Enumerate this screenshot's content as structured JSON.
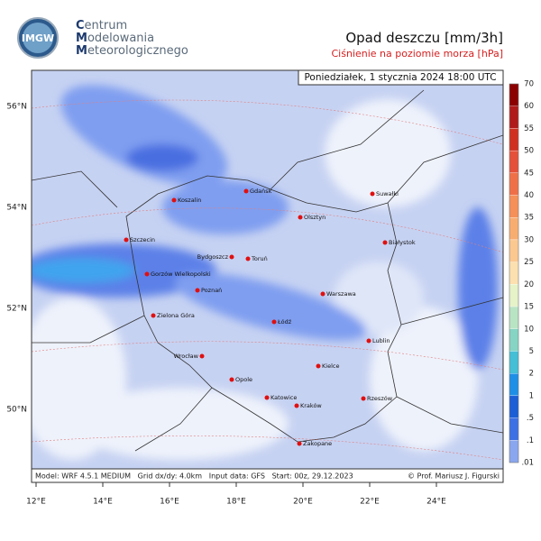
{
  "header": {
    "logo": "IMGW",
    "org": [
      "Centrum",
      "Modelowania",
      "Meteorologicznego"
    ],
    "title": "Opad deszczu [mm/3h]",
    "subtitle": "Ciśnienie na poziomie morza [hPa]"
  },
  "map": {
    "datetime": "Poniedziałek, 1 stycznia 2024 18:00 UTC",
    "lat_labels": [
      "56°N",
      "54°N",
      "52°N",
      "50°N"
    ],
    "lon_labels": [
      "12°E",
      "14°E",
      "16°E",
      "18°E",
      "20°E",
      "22°E",
      "24°E"
    ],
    "cities": [
      "Koszalin",
      "Gdańsk",
      "Suwałki",
      "Olsztyn",
      "Szczecin",
      "Białystok",
      "Bydgoszcz",
      "Toruń",
      "Gorzów Wielkopolski",
      "Poznań",
      "Warszawa",
      "Zielona Góra",
      "Łódź",
      "Lublin",
      "Wrocław",
      "Opole",
      "Kielce",
      "Katowice",
      "Kraków",
      "Rzeszów",
      "Zakopane"
    ],
    "footer_left": "Model: WRF 4.5.1 MEDIUM   Grid dx/dy: 4.0km   Input data: GFS   Start: 00z, 29.12.2023",
    "footer_right": "© Prof. Mariusz J. Figurski"
  },
  "legend": {
    "labels": [
      "70",
      "60",
      "55",
      "50",
      "45",
      "40",
      "35",
      "30",
      "25",
      "20",
      "15",
      "10",
      "5",
      "2",
      "1",
      ".5",
      ".1",
      ".01"
    ]
  }
}
